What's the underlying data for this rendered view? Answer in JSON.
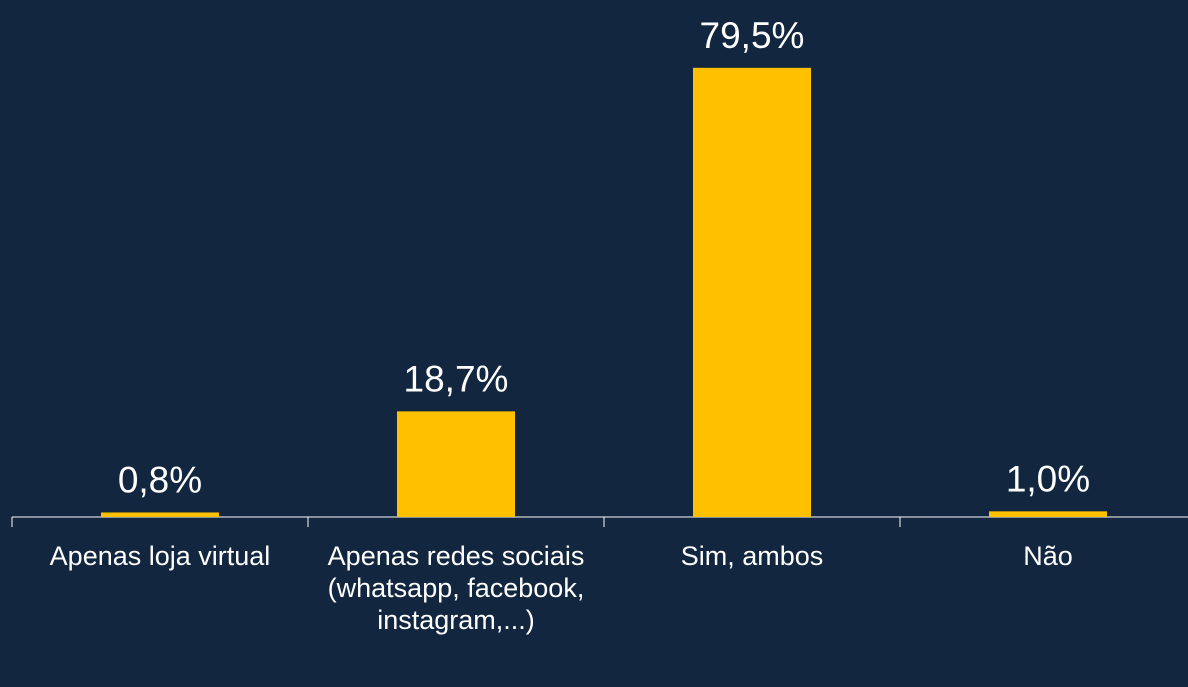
{
  "chart_data": {
    "type": "bar",
    "categories": [
      "Apenas loja virtual",
      "Apenas redes sociais (whatsapp, facebook, instagram,...)",
      "Sim, ambos",
      "Não"
    ],
    "values": [
      0.8,
      18.7,
      79.5,
      1.0
    ],
    "value_labels": [
      "0,8%",
      "18,7%",
      "79,5%",
      "1,0%"
    ],
    "color": "#ffc000"
  }
}
